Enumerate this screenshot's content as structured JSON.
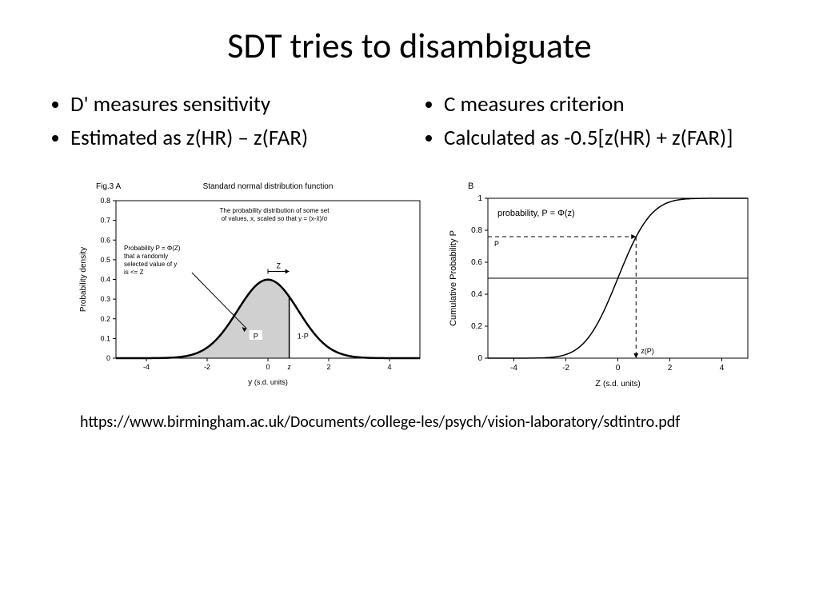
{
  "title": "SDT tries to disambiguate",
  "left_bullets": [
    "D' measures sensitivity",
    "Estimated as z(HR) – z(FAR)"
  ],
  "right_bullets": [
    "C measures criterion",
    "Calculated as -0.5[z(HR) + z(FAR)]"
  ],
  "url": "https://www.birmingham.ac.uk/Documents/college-les/psych/vision-laboratory/sdtintro.pdf",
  "figA": {
    "type": "line",
    "label": "Fig.3  A",
    "title": "Standard normal distribution function",
    "annot1": "The probability distribution of some set of values, x, scaled so that y = (x-x̄)/σ",
    "annot2_l1": "Probability P = Φ(Z)",
    "annot2_l2": "that a randomly",
    "annot2_l3": "selected value of y",
    "annot2_l4": "is <= Z",
    "xlabel_letter": "y",
    "xlabel_units": "(s.d. units)",
    "ylabel": "Probability density",
    "xlim": [
      -5,
      5
    ],
    "ylim": [
      0,
      0.8
    ],
    "xticks": [
      -4,
      -2,
      0,
      2,
      4
    ],
    "yticks": [
      0,
      0.1,
      0.2,
      0.3,
      0.4,
      0.5,
      0.6,
      0.7,
      0.8
    ],
    "z_marker": 0.7,
    "z_letter": "Z",
    "z_xaxis": "z",
    "p_label": "P",
    "one_minus_p": "1-P",
    "line_color": "#000000",
    "fill_color": "#d0d0d0",
    "line_width": 2.5,
    "tick_fontsize": 9,
    "label_fontsize": 10,
    "title_fontsize": 10,
    "annot_fontsize": 8
  },
  "figB": {
    "type": "line",
    "label": "B",
    "xlabel_letter": "Z",
    "xlabel_units": "(s.d. units)",
    "ylabel": "Cumulative Probability   P",
    "xlim": [
      -5,
      5
    ],
    "ylim": [
      0,
      1
    ],
    "xticks": [
      -4,
      -2,
      0,
      2,
      4
    ],
    "yticks": [
      0,
      0.2,
      0.4,
      0.6,
      0.8,
      1
    ],
    "annot": "probability, P = Φ(z)",
    "p_label": "P",
    "zp_label": "z(P)",
    "hline_y": 0.5,
    "dash_z": 0.7,
    "dash_p": 0.76,
    "line_color": "#000000",
    "line_width": 1.5,
    "tick_fontsize": 10,
    "label_fontsize": 11
  }
}
